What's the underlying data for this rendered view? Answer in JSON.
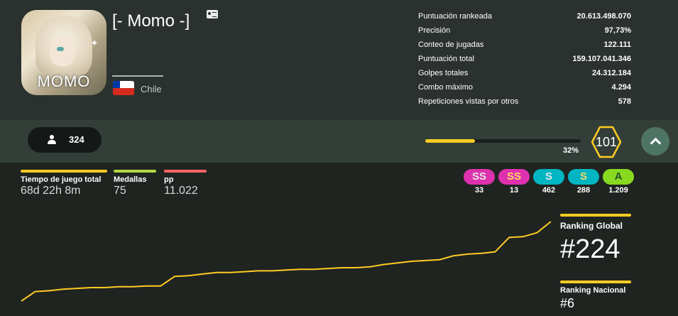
{
  "profile": {
    "avatar_caption": "MOMO",
    "username": "[- Momo -]",
    "country": "Chile",
    "card_icon": "id-card-icon",
    "flag_colors": {
      "white": "#ffffff",
      "red": "#d52b1e",
      "blue": "#0039a6"
    }
  },
  "stats": [
    {
      "label": "Puntuación rankeada",
      "value": "20.613.498.070"
    },
    {
      "label": "Precisión",
      "value": "97,73%"
    },
    {
      "label": "Conteo de jugadas",
      "value": "122.111"
    },
    {
      "label": "Puntuación total",
      "value": "159.107.041.346"
    },
    {
      "label": "Golpes totales",
      "value": "24.312.184"
    },
    {
      "label": "Combo máximo",
      "value": "4.294"
    },
    {
      "label": "Repeticiones vistas por otros",
      "value": "578"
    }
  ],
  "followers": {
    "icon": "person-icon",
    "count": "324"
  },
  "level": {
    "value": "101",
    "progress_label": "32%",
    "progress": 0.32,
    "color": "#ffcc22"
  },
  "expand_icon": "chevron-up-icon",
  "metrics": [
    {
      "label": "Tiempo de juego total",
      "value": "68d 22h 8m",
      "color": "#ffcc22"
    },
    {
      "label": "Medallas",
      "value": "75",
      "color": "#b3d944"
    },
    {
      "label": "pp",
      "value": "11.022",
      "color": "#ff6666"
    }
  ],
  "grades": [
    {
      "grade": "SS",
      "count": "33",
      "bg": "#de31ae",
      "fg": "#e6e6e6"
    },
    {
      "grade": "SS",
      "count": "13",
      "bg": "#de31ae",
      "fg": "#ffd966"
    },
    {
      "grade": "S",
      "count": "462",
      "bg": "#02b5c3",
      "fg": "#e6e6e6"
    },
    {
      "grade": "S",
      "count": "288",
      "bg": "#02b5c3",
      "fg": "#ffd966"
    },
    {
      "grade": "A",
      "count": "1.209",
      "bg": "#88da20",
      "fg": "#275227"
    }
  ],
  "ranking": {
    "global_label": "Ranking Global",
    "global_value": "#224",
    "national_label": "Ranking Nacional",
    "national_value": "#6"
  },
  "chart_data": {
    "type": "line",
    "title": "",
    "xlabel": "",
    "ylabel": "",
    "grid": false,
    "color": "#ffcc22",
    "series": [
      {
        "values": [
          0,
          0.12,
          0.13,
          0.15,
          0.16,
          0.17,
          0.17,
          0.18,
          0.18,
          0.19,
          0.19,
          0.31,
          0.32,
          0.34,
          0.36,
          0.36,
          0.37,
          0.38,
          0.38,
          0.39,
          0.4,
          0.4,
          0.41,
          0.42,
          0.42,
          0.43,
          0.46,
          0.48,
          0.5,
          0.51,
          0.52,
          0.57,
          0.59,
          0.6,
          0.62,
          0.8,
          0.81,
          0.86,
          1.0
        ]
      }
    ]
  }
}
